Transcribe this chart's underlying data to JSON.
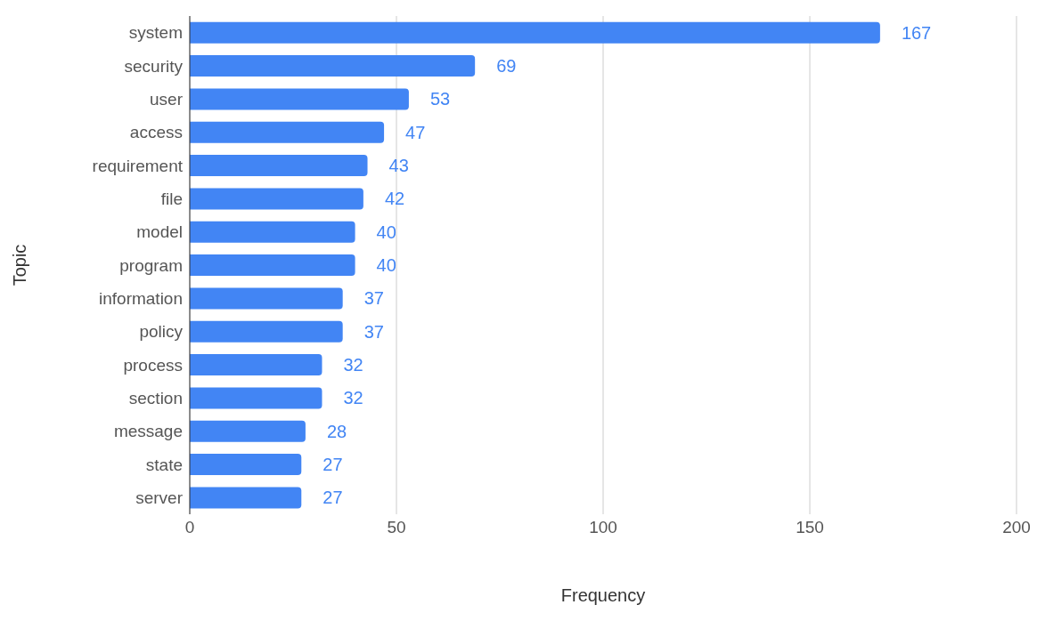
{
  "chart_data": {
    "type": "bar",
    "orientation": "horizontal",
    "xlabel": "Frequency",
    "ylabel": "Topic",
    "categories": [
      "system",
      "security",
      "user",
      "access",
      "requirement",
      "file",
      "model",
      "program",
      "information",
      "policy",
      "process",
      "section",
      "message",
      "state",
      "server"
    ],
    "values": [
      167,
      69,
      53,
      47,
      43,
      42,
      40,
      40,
      37,
      37,
      32,
      32,
      28,
      27,
      27
    ],
    "color": "#4285f4",
    "xlim": [
      0,
      200
    ],
    "xticks": [
      0,
      50,
      100,
      150,
      200
    ],
    "grid": "x",
    "data_labels": true
  }
}
